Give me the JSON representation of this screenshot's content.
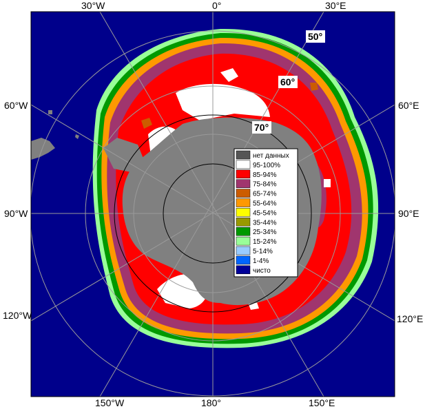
{
  "map": {
    "lon_labels_top": [
      "30°W",
      "0°",
      "30°E"
    ],
    "lon_labels_left": [
      "60°W",
      "90°W",
      "120°W"
    ],
    "lon_labels_right": [
      "60°E",
      "90°E",
      "120°E"
    ],
    "lon_labels_bottom": [
      "150°W",
      "180°",
      "150°E"
    ],
    "lat_labels": [
      "50°",
      "60°",
      "70°"
    ]
  },
  "legend": {
    "items": [
      {
        "label": "нет данных",
        "color": "#555555"
      },
      {
        "label": "95-100%",
        "color": "#ffffff"
      },
      {
        "label": "85-94%",
        "color": "#ff0000"
      },
      {
        "label": "75-84%",
        "color": "#a0356e"
      },
      {
        "label": "65-74%",
        "color": "#cc5c00"
      },
      {
        "label": "55-64%",
        "color": "#ff9900"
      },
      {
        "label": "45-54%",
        "color": "#ffff00"
      },
      {
        "label": "35-44%",
        "color": "#999900"
      },
      {
        "label": "25-34%",
        "color": "#009900"
      },
      {
        "label": "15-24%",
        "color": "#99ff99"
      },
      {
        "label": "5-14%",
        "color": "#99ccff"
      },
      {
        "label": "1-4%",
        "color": "#0066ff"
      },
      {
        "label": "чисто",
        "color": "#000099"
      }
    ]
  },
  "colors": {
    "ocean": "#00008b",
    "land": "#808080",
    "grid": "#9a9a9a",
    "frame": "#000000"
  }
}
